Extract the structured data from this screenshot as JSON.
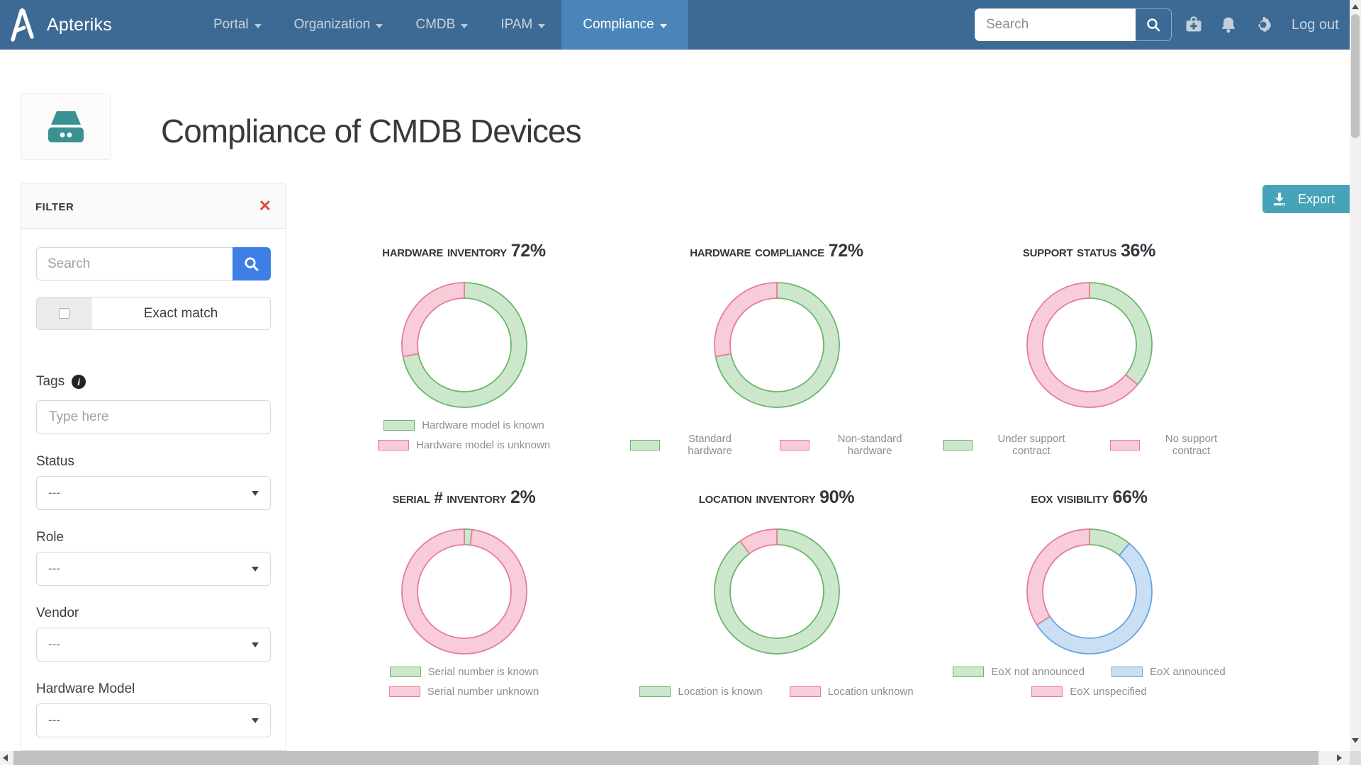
{
  "nav": {
    "brand": "Apteriks",
    "items": [
      {
        "label": "Portal"
      },
      {
        "label": "Organization"
      },
      {
        "label": "CMDB"
      },
      {
        "label": "IPAM"
      },
      {
        "label": "Compliance",
        "active": true
      }
    ],
    "search_placeholder": "Search",
    "icons": [
      "medical-bag-icon",
      "bell-icon",
      "gear-icon"
    ],
    "logout_label": "Log out"
  },
  "header": {
    "title": "Compliance of CMDB Devices",
    "icon": "storage-device-icon"
  },
  "filter": {
    "title": "Filter",
    "close_icon": "close-icon",
    "search_placeholder": "Search",
    "exact_match_label": "Exact match",
    "fields": [
      {
        "label": "Tags",
        "type": "text",
        "placeholder": "Type here",
        "info_icon": true
      },
      {
        "label": "Status",
        "type": "select",
        "value": "---"
      },
      {
        "label": "Role",
        "type": "select",
        "value": "---"
      },
      {
        "label": "Vendor",
        "type": "select",
        "value": "---"
      },
      {
        "label": "Hardware Model",
        "type": "select",
        "value": "---"
      }
    ]
  },
  "export": {
    "label": "Export",
    "icon": "download-icon"
  },
  "chart_data": [
    {
      "type": "donut",
      "title": "Hardware inventory",
      "percent": "72%",
      "segments": [
        {
          "label": "Hardware model is known",
          "value": 72,
          "color": "green"
        },
        {
          "label": "Hardware model is unknown",
          "value": 28,
          "color": "pink"
        }
      ],
      "legend_rows": [
        [
          0
        ],
        [
          1
        ]
      ]
    },
    {
      "type": "donut",
      "title": "Hardware compliance",
      "percent": "72%",
      "segments": [
        {
          "label": "Standard hardware",
          "value": 72,
          "color": "green"
        },
        {
          "label": "Non-standard hardware",
          "value": 28,
          "color": "pink"
        }
      ],
      "legend_rows": [
        [
          0,
          1
        ]
      ]
    },
    {
      "type": "donut",
      "title": "Support status",
      "percent": "36%",
      "segments": [
        {
          "label": "Under support contract",
          "value": 36,
          "color": "green"
        },
        {
          "label": "No support contract",
          "value": 64,
          "color": "pink"
        }
      ],
      "legend_rows": [
        [
          0,
          1
        ]
      ]
    },
    {
      "type": "donut",
      "title": "Serial # inventory",
      "percent": "2%",
      "segments": [
        {
          "label": "Serial number is known",
          "value": 2,
          "color": "green"
        },
        {
          "label": "Serial number unknown",
          "value": 98,
          "color": "pink"
        }
      ],
      "legend_rows": [
        [
          0
        ],
        [
          1
        ]
      ]
    },
    {
      "type": "donut",
      "title": "Location inventory",
      "percent": "90%",
      "segments": [
        {
          "label": "Location is known",
          "value": 90,
          "color": "green"
        },
        {
          "label": "Location unknown",
          "value": 10,
          "color": "pink"
        }
      ],
      "legend_rows": [
        [
          0,
          1
        ]
      ]
    },
    {
      "type": "donut",
      "title": "EoX visibility",
      "percent": "66%",
      "segments": [
        {
          "label": "EoX not announced",
          "value": 11,
          "color": "green"
        },
        {
          "label": "EoX announced",
          "value": 55,
          "color": "blue"
        },
        {
          "label": "EoX unspecified",
          "value": 34,
          "color": "pink"
        }
      ],
      "legend_rows": [
        [
          0,
          1
        ],
        [
          2
        ]
      ]
    }
  ],
  "colors": {
    "navbar": "#3d6a94",
    "navbar_active": "#4a84b8",
    "primary_button": "#3c7fe6",
    "export_button": "#47a4b8",
    "close_red": "#e0493f",
    "title_icon_teal": "#3a9191",
    "chart": {
      "green": {
        "fill": "#cde7cd",
        "stroke": "#6ab66d"
      },
      "pink": {
        "fill": "#f8ccd8",
        "stroke": "#e57d99"
      },
      "blue": {
        "fill": "#cadff4",
        "stroke": "#66a5de"
      }
    }
  }
}
